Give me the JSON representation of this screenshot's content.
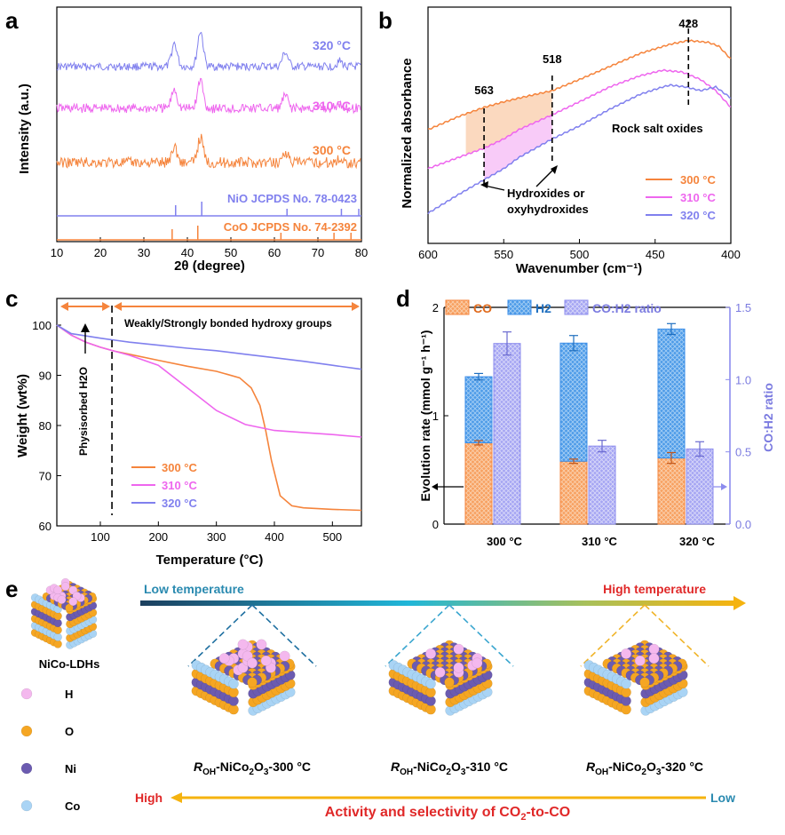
{
  "panel_letters": {
    "a": "a",
    "b": "b",
    "c": "c",
    "d": "d",
    "e": "e"
  },
  "chart_data": [
    {
      "id": "a",
      "type": "line",
      "xlabel": "2θ (degree)",
      "ylabel": "Intensity (a.u.)",
      "xlim": [
        10,
        80
      ],
      "xticks": [
        10,
        20,
        30,
        40,
        50,
        60,
        70,
        80
      ],
      "series": [
        {
          "name": "320 °C",
          "color": "#8080ee",
          "peaks": [
            37,
            43,
            62.5,
            75
          ]
        },
        {
          "name": "310 °C",
          "color": "#ee66ee",
          "peaks": [
            37,
            43,
            62.5,
            75
          ]
        },
        {
          "name": "300 °C",
          "color": "#f5843c",
          "peaks": [
            37,
            43,
            62.5,
            75
          ]
        }
      ],
      "references": [
        {
          "name": "NiO JCPDS No. 78-0423",
          "color": "#8080ee",
          "sticks": [
            37.3,
            43.3,
            62.9,
            75.4,
            79.4
          ]
        },
        {
          "name": "CoO JCPDS No. 74-2392",
          "color": "#f5843c",
          "sticks": [
            36.5,
            42.4,
            61.5,
            73.7,
            77.6
          ]
        }
      ]
    },
    {
      "id": "b",
      "type": "line",
      "xlabel": "Wavenumber (cm⁻¹)",
      "ylabel": "Normalized absorbance",
      "xlim": [
        600,
        400
      ],
      "xticks": [
        600,
        550,
        500,
        450,
        400
      ],
      "markers": [
        {
          "x": 563,
          "label": "563"
        },
        {
          "x": 518,
          "label": "518"
        },
        {
          "x": 428,
          "label": "428"
        }
      ],
      "annotations": [
        "Rock salt oxides",
        "Hydroxides or",
        "oxyhydroxides"
      ],
      "series": [
        {
          "name": "300 °C",
          "color": "#f5843c",
          "x": [
            600,
            580,
            563,
            550,
            540,
            518,
            500,
            480,
            460,
            440,
            428,
            415,
            408,
            400
          ],
          "y": [
            0.45,
            0.52,
            0.57,
            0.6,
            0.62,
            0.66,
            0.72,
            0.79,
            0.86,
            0.91,
            0.93,
            0.92,
            0.9,
            0.83
          ]
        },
        {
          "name": "310 °C",
          "color": "#ee66ee",
          "x": [
            600,
            580,
            563,
            550,
            540,
            518,
            500,
            480,
            460,
            445,
            432,
            420,
            410,
            400
          ],
          "y": [
            0.24,
            0.3,
            0.35,
            0.4,
            0.45,
            0.53,
            0.6,
            0.68,
            0.74,
            0.77,
            0.76,
            0.72,
            0.66,
            0.57
          ]
        },
        {
          "name": "320 °C",
          "color": "#8080ee",
          "x": [
            600,
            580,
            563,
            550,
            540,
            518,
            500,
            480,
            460,
            445,
            440,
            430,
            420,
            410,
            400
          ],
          "y": [
            0.0,
            0.1,
            0.18,
            0.24,
            0.3,
            0.4,
            0.47,
            0.56,
            0.64,
            0.68,
            0.69,
            0.68,
            0.66,
            0.68,
            0.62
          ]
        }
      ]
    },
    {
      "id": "c",
      "type": "line",
      "xlabel": "Temperature (°C)",
      "ylabel": "Weight (wt%)",
      "xlim": [
        25,
        550
      ],
      "ylim": [
        60,
        100
      ],
      "xticks": [
        100,
        200,
        300,
        400,
        500
      ],
      "yticks": [
        60,
        70,
        80,
        90,
        100
      ],
      "annotations": [
        "Weakly/Strongly bonded hydroxy groups",
        "Physisorbed H2O"
      ],
      "series": [
        {
          "name": "300 °C",
          "color": "#f5843c",
          "x": [
            25,
            50,
            75,
            100,
            125,
            150,
            200,
            250,
            300,
            340,
            360,
            375,
            385,
            395,
            410,
            430,
            450,
            500,
            550
          ],
          "y": [
            100,
            98,
            96.6,
            95.6,
            94.8,
            94.2,
            93.0,
            91.8,
            90.8,
            89.5,
            87.5,
            84,
            79,
            73,
            66,
            64,
            63.6,
            63.3,
            63.1
          ]
        },
        {
          "name": "310 °C",
          "color": "#ee66ee",
          "x": [
            25,
            50,
            75,
            100,
            125,
            150,
            200,
            250,
            300,
            350,
            400,
            450,
            500,
            550
          ],
          "y": [
            100,
            98,
            96.6,
            95.6,
            94.8,
            94.0,
            92.0,
            87.5,
            83.0,
            80.2,
            79.0,
            78.6,
            78.2,
            77.7
          ]
        },
        {
          "name": "320 °C",
          "color": "#8080ee",
          "x": [
            25,
            50,
            100,
            150,
            200,
            250,
            300,
            350,
            400,
            450,
            500,
            550
          ],
          "y": [
            100,
            98.3,
            97.4,
            96.6,
            96.0,
            95.4,
            94.9,
            94.2,
            93.5,
            92.8,
            92.0,
            91.2
          ]
        }
      ]
    },
    {
      "id": "d",
      "type": "bar",
      "categories": [
        "300 °C",
        "310 °C",
        "320 °C"
      ],
      "ylabel": "Evolution rate (mmol g⁻¹ h⁻¹)",
      "y2label": "CO:H2 ratio",
      "ylim": [
        0,
        2
      ],
      "y2lim": [
        0,
        1.5
      ],
      "yticks": [
        0,
        1,
        2
      ],
      "y2ticks": [
        "0.0",
        "0.5",
        "1.0",
        "1.5"
      ],
      "series": [
        {
          "name": "CO",
          "axis": "left",
          "stack": "gas",
          "color": "#f5843c",
          "values": [
            0.75,
            0.58,
            0.61
          ],
          "errors": [
            0.02,
            0.02,
            0.05
          ]
        },
        {
          "name": "H2",
          "axis": "left",
          "stack": "gas",
          "color": "#3a8de8",
          "values": [
            0.61,
            1.09,
            1.19
          ],
          "errors": [
            0.03,
            0.07,
            0.05
          ]
        },
        {
          "name": "CO:H2 ratio",
          "axis": "right",
          "color": "#8c8cee",
          "values": [
            1.25,
            0.54,
            0.52
          ],
          "errors": [
            0.08,
            0.04,
            0.05
          ]
        }
      ]
    }
  ],
  "panel_e": {
    "top_arrow": {
      "left_label": "Low temperature",
      "right_label": "High temperature"
    },
    "ldh_label": "NiCo-LDHs",
    "legend": [
      {
        "label": "H",
        "color": "#f4b8ee"
      },
      {
        "label": "O",
        "color": "#f5a623"
      },
      {
        "label": "Ni",
        "color": "#6b5bb0"
      },
      {
        "label": "Co",
        "color": "#a9d4f5"
      }
    ],
    "structures": [
      {
        "prefix": "R",
        "sub": "OH",
        "mid": "-NiCo",
        "sub2": "2",
        "mid2": "O",
        "sub3": "3",
        "suffix": "-300 °C",
        "dash_color": "#1e6fa0",
        "h_count": 16
      },
      {
        "prefix": "R",
        "sub": "OH",
        "mid": "-NiCo",
        "sub2": "2",
        "mid2": "O",
        "sub3": "3",
        "suffix": "-310 °C",
        "dash_color": "#3aa6cf",
        "h_count": 8
      },
      {
        "prefix": "R",
        "sub": "OH",
        "mid": "-NiCo",
        "sub2": "2",
        "mid2": "O",
        "sub3": "3",
        "suffix": "-320 °C",
        "dash_color": "#f0b429",
        "h_count": 4
      }
    ],
    "bottom_arrow": {
      "left_label": "High",
      "right_label": "Low",
      "caption_pre": "Activity and selectivity of CO",
      "caption_sub": "2",
      "caption_post": "-to-CO"
    }
  }
}
